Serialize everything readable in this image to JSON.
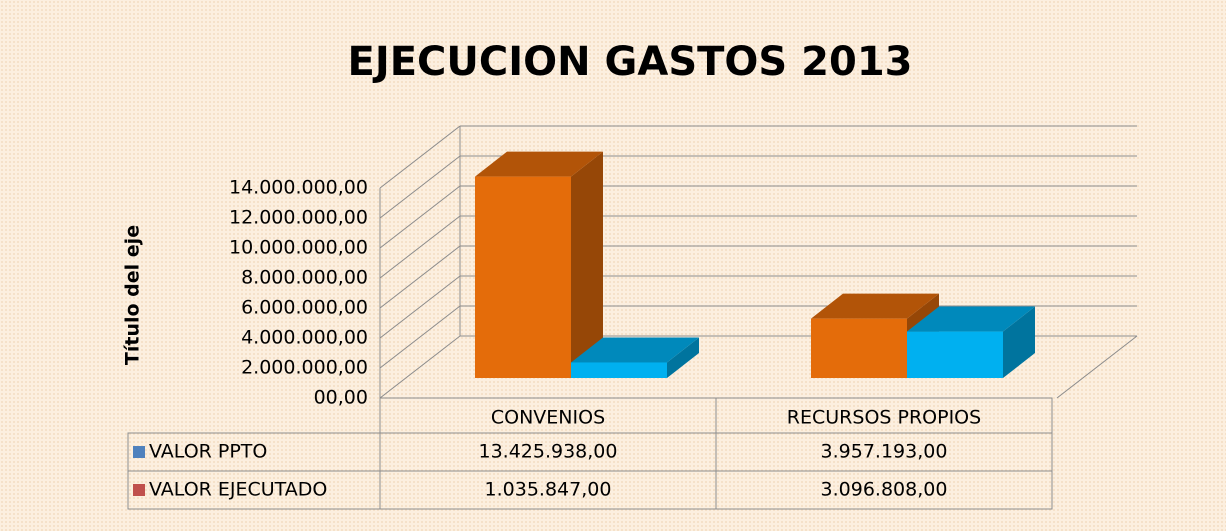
{
  "chart_data": {
    "type": "bar3d",
    "title": "EJECUCION GASTOS 2013",
    "y_axis_label": "Título del eje",
    "categories": [
      "CONVENIOS",
      "RECURSOS PROPIOS"
    ],
    "series": [
      {
        "name": "VALOR PPTO",
        "color": "#e46c0a",
        "key_color": "#4f81bd",
        "values": [
          13425938,
          3957193
        ],
        "value_labels": [
          "13.425.938,00",
          "3.957.193,00"
        ]
      },
      {
        "name": "VALOR EJECUTADO",
        "color": "#00b0f0",
        "key_color": "#c0504d",
        "values": [
          1035847,
          3096808
        ],
        "value_labels": [
          "1.035.847,00",
          "3.096.808,00"
        ]
      }
    ],
    "ylim": [
      0,
      14000000
    ],
    "yticks": [
      {
        "value": 0,
        "label": "00,00"
      },
      {
        "value": 2000000,
        "label": "2.000.000,00"
      },
      {
        "value": 4000000,
        "label": "4.000.000,00"
      },
      {
        "value": 6000000,
        "label": "6.000.000,00"
      },
      {
        "value": 8000000,
        "label": "8.000.000,00"
      },
      {
        "value": 10000000,
        "label": "10.000.000,00"
      },
      {
        "value": 12000000,
        "label": "12.000.000,00"
      },
      {
        "value": 14000000,
        "label": "14.000.000,00"
      }
    ],
    "grid": true
  }
}
